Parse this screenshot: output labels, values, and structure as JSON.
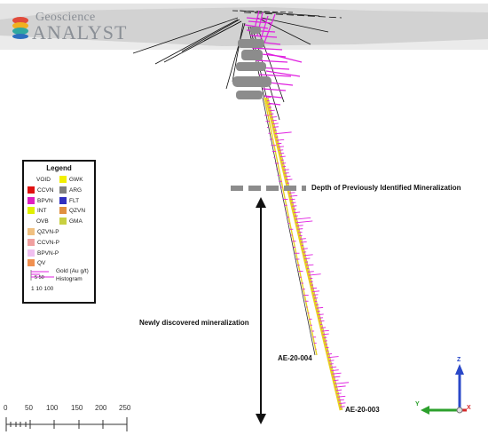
{
  "logo": {
    "line1": "Geoscience",
    "line2": "ANALYST"
  },
  "legend": {
    "title": "Legend",
    "items": [
      {
        "code": "VOID",
        "color": "#ffffff"
      },
      {
        "code": "GWK",
        "color": "#f2f000"
      },
      {
        "code": "CCVN",
        "color": "#e01010"
      },
      {
        "code": "ARG",
        "color": "#808080"
      },
      {
        "code": "BPVN",
        "color": "#e020c0"
      },
      {
        "code": "FLT",
        "color": "#3030c0"
      },
      {
        "code": "INT",
        "color": "#e0f000"
      },
      {
        "code": "QZVN",
        "color": "#e09040"
      },
      {
        "code": "OVB",
        "color": "#ffffff"
      },
      {
        "code": "GMA",
        "color": "#c8d040"
      },
      {
        "code": "QZVN-P",
        "color": "#f0c080"
      },
      {
        "code": "CCVN-P",
        "color": "#f0a0a0"
      },
      {
        "code": "BPVN-P",
        "color": "#f0c0f0"
      },
      {
        "code": "QV",
        "color": "#f09050"
      }
    ],
    "histogram_label_1": "Gold (Au g/t)",
    "histogram_label_2": "Histogram",
    "hist_ticks_top": "5  50",
    "hist_ticks_bottom": "1 10 100"
  },
  "annotations": {
    "depth_label": "Depth of Previously Identified Mineralization",
    "newly_discovered": "Newly discovered mineralization",
    "hole_1": "AE-20-004",
    "hole_2": "AE-20-003"
  },
  "scale_bar": {
    "ticks": [
      "0",
      "50",
      "100",
      "150",
      "200",
      "250"
    ]
  },
  "axes": {
    "z": "Z",
    "y": "Y",
    "x": "X"
  },
  "colors": {
    "drill_yellow": "#e8d020",
    "assay_magenta": "#e020e0",
    "grey_body": "#8c8c8c",
    "terrain": "#d8d8d8"
  }
}
